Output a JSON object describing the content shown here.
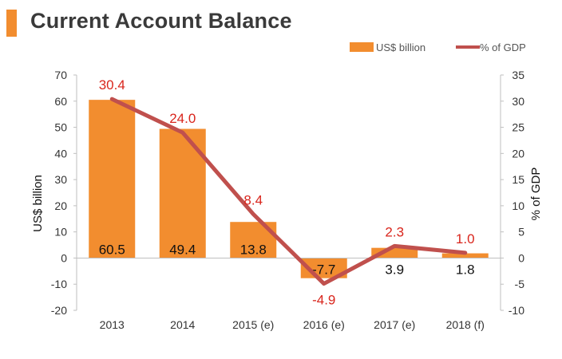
{
  "title": "Current Account Balance",
  "chart_data": {
    "type": "bar",
    "categories": [
      "2013",
      "2014",
      "2015 (e)",
      "2016 (e)",
      "2017 (e)",
      "2018 (f)"
    ],
    "series": [
      {
        "name": "US$ billion",
        "type": "bar",
        "axis": "left",
        "values": [
          60.5,
          49.4,
          13.8,
          -7.7,
          3.9,
          1.8
        ],
        "color": "#f28d2f"
      },
      {
        "name": "% of GDP",
        "type": "line",
        "axis": "right",
        "values": [
          30.4,
          24.0,
          8.4,
          -4.9,
          2.3,
          1.0
        ],
        "color": "#c0504d"
      }
    ],
    "bar_labels": [
      "60.5",
      "49.4",
      "13.8",
      "-7.7",
      "3.9",
      "1.8"
    ],
    "line_labels": [
      "30.4",
      "24.0",
      "8.4",
      "-4.9",
      "2.3",
      "1.0"
    ],
    "ylabel": "US$ billion",
    "y2label": "% of GDP",
    "ylim": [
      -20,
      70
    ],
    "y2lim": [
      -10,
      35
    ],
    "yticks": [
      "70",
      "60",
      "50",
      "40",
      "30",
      "20",
      "10",
      "0",
      "-10",
      "-20"
    ],
    "y2ticks": [
      "35",
      "30",
      "25",
      "20",
      "15",
      "10",
      "5",
      "0",
      "-5",
      "-10"
    ],
    "legend": {
      "position": "top-right",
      "items": [
        "US$ billion",
        "% of GDP"
      ]
    },
    "grid": false,
    "label_color": "#d9251c"
  }
}
